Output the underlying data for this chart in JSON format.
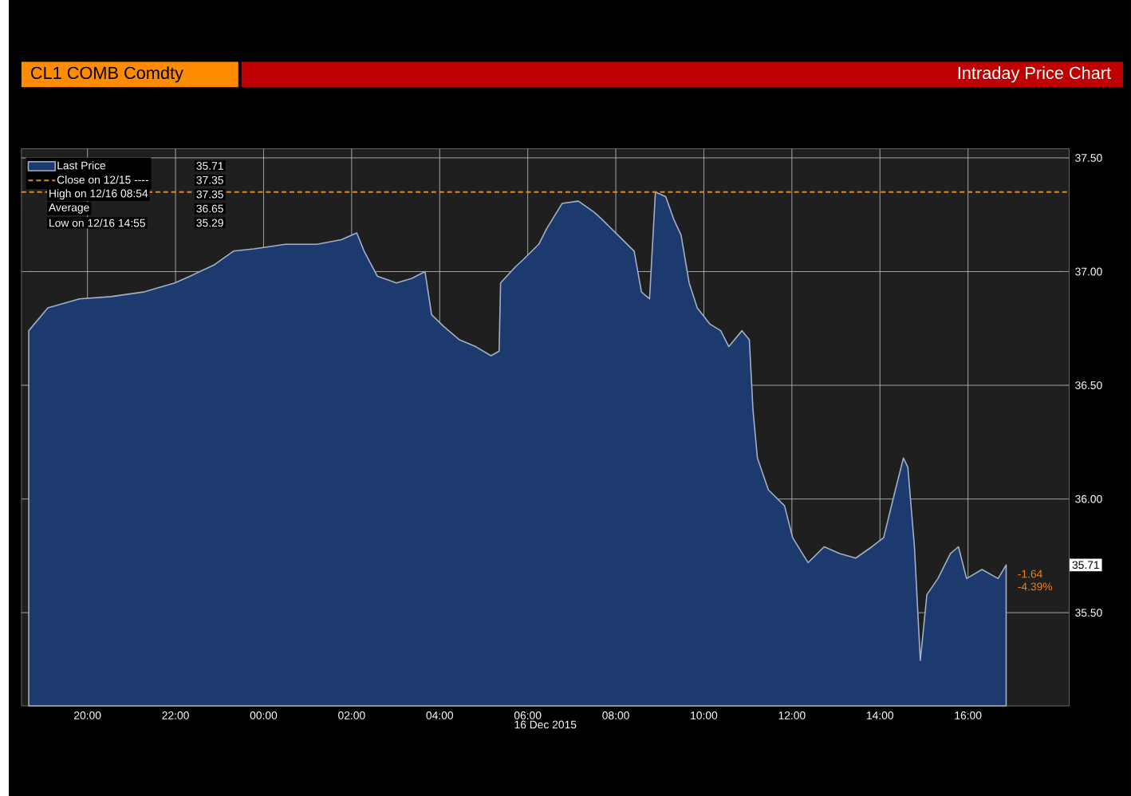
{
  "chart_data": {
    "type": "area",
    "title": "Intraday Price Chart",
    "subtitle": "CL1 COMB Comdty",
    "xlabel": "16 Dec 2015",
    "x": [
      "2015-12-15T18:40",
      "2015-12-15T19:06",
      "2015-12-15T19:49",
      "2015-12-15T20:32",
      "2015-12-15T21:16",
      "2015-12-15T21:59",
      "2015-12-15T22:20",
      "2015-12-15T22:53",
      "2015-12-15T23:19",
      "2015-12-15T23:47",
      "2015-12-16T00:30",
      "2015-12-16T01:13",
      "2015-12-16T01:46",
      "2015-12-16T02:07",
      "2015-12-16T02:17",
      "2015-12-16T02:35",
      "2015-12-16T03:01",
      "2015-12-16T03:22",
      "2015-12-16T03:40",
      "2015-12-16T03:49",
      "2015-12-16T04:05",
      "2015-12-16T04:27",
      "2015-12-16T04:49",
      "2015-12-16T05:10",
      "2015-12-16T05:21",
      "2015-12-16T05:23",
      "2015-12-16T05:43",
      "2015-12-16T05:53",
      "2015-12-16T06:15",
      "2015-12-16T06:26",
      "2015-12-16T06:47",
      "2015-12-16T07:09",
      "2015-12-16T07:31",
      "2015-12-16T07:41",
      "2015-12-16T08:03",
      "2015-12-16T08:25",
      "2015-12-16T08:35",
      "2015-12-16T08:46",
      "2015-12-16T08:54",
      "2015-12-16T09:08",
      "2015-12-16T09:19",
      "2015-12-16T09:29",
      "2015-12-16T09:40",
      "2015-12-16T09:51",
      "2015-12-16T10:08",
      "2015-12-16T10:23",
      "2015-12-16T10:34",
      "2015-12-16T10:52",
      "2015-12-16T11:02",
      "2015-12-16T11:07",
      "2015-12-16T11:13",
      "2015-12-16T11:28",
      "2015-12-16T11:50",
      "2015-12-16T12:01",
      "2015-12-16T12:22",
      "2015-12-16T12:44",
      "2015-12-16T13:05",
      "2015-12-16T13:27",
      "2015-12-16T13:49",
      "2015-12-16T14:05",
      "2015-12-16T14:21",
      "2015-12-16T14:32",
      "2015-12-16T14:38",
      "2015-12-16T14:47",
      "2015-12-16T14:55",
      "2015-12-16T15:04",
      "2015-12-16T15:19",
      "2015-12-16T15:36",
      "2015-12-16T15:47",
      "2015-12-16T15:58",
      "2015-12-16T16:19",
      "2015-12-16T16:41",
      "2015-12-16T16:52"
    ],
    "series": [
      {
        "name": "Last Price",
        "color": "#1c3a6e",
        "values": [
          36.74,
          36.84,
          36.88,
          36.89,
          36.91,
          36.95,
          36.98,
          37.03,
          37.09,
          37.1,
          37.12,
          37.12,
          37.14,
          37.17,
          37.09,
          36.98,
          36.95,
          36.97,
          37.0,
          36.81,
          36.76,
          36.7,
          36.67,
          36.63,
          36.65,
          36.95,
          37.02,
          37.05,
          37.12,
          37.19,
          37.3,
          37.31,
          37.26,
          37.23,
          37.16,
          37.09,
          36.91,
          36.88,
          37.35,
          37.33,
          37.23,
          37.16,
          36.95,
          36.84,
          36.77,
          36.74,
          36.67,
          36.74,
          36.7,
          36.39,
          36.18,
          36.04,
          35.97,
          35.83,
          35.72,
          35.79,
          35.76,
          35.74,
          35.79,
          35.83,
          36.04,
          36.18,
          36.14,
          35.79,
          35.29,
          35.58,
          35.65,
          35.76,
          35.79,
          35.65,
          35.69,
          35.65,
          35.71
        ]
      }
    ],
    "xlim": [
      "2015-12-15T18:30",
      "2015-12-16T18:18"
    ],
    "ylim": [
      35.09,
      37.54
    ],
    "xticks": [
      {
        "value": "2015-12-15T20:00",
        "label": "20:00"
      },
      {
        "value": "2015-12-15T22:00",
        "label": "22:00"
      },
      {
        "value": "2015-12-16T00:00",
        "label": "00:00"
      },
      {
        "value": "2015-12-16T02:00",
        "label": "02:00"
      },
      {
        "value": "2015-12-16T04:00",
        "label": "04:00"
      },
      {
        "value": "2015-12-16T06:00",
        "label": "06:00"
      },
      {
        "value": "2015-12-16T08:00",
        "label": "08:00"
      },
      {
        "value": "2015-12-16T10:00",
        "label": "10:00"
      },
      {
        "value": "2015-12-16T12:00",
        "label": "12:00"
      },
      {
        "value": "2015-12-16T14:00",
        "label": "14:00"
      },
      {
        "value": "2015-12-16T16:00",
        "label": "16:00"
      }
    ],
    "yticks": [
      {
        "value": 35.5,
        "label": "35.50"
      },
      {
        "value": 36.0,
        "label": "36.00"
      },
      {
        "value": 36.5,
        "label": "36.50"
      },
      {
        "value": 37.0,
        "label": "37.00"
      },
      {
        "value": 37.5,
        "label": "37.50"
      }
    ],
    "ref_lines": [
      {
        "axis": "y",
        "value": 37.35,
        "label": "Close on 12/15 ----",
        "color": "#e08a1e"
      }
    ],
    "annotations": [
      "35.71",
      "37.35",
      "High on 12/16 08:54",
      "37.35",
      "Average",
      "36.65",
      "Low on 12/16 14:55",
      "35.29",
      "35.71",
      "-1.64",
      "-4.39%"
    ],
    "grid": true,
    "legend": "top left"
  }
}
